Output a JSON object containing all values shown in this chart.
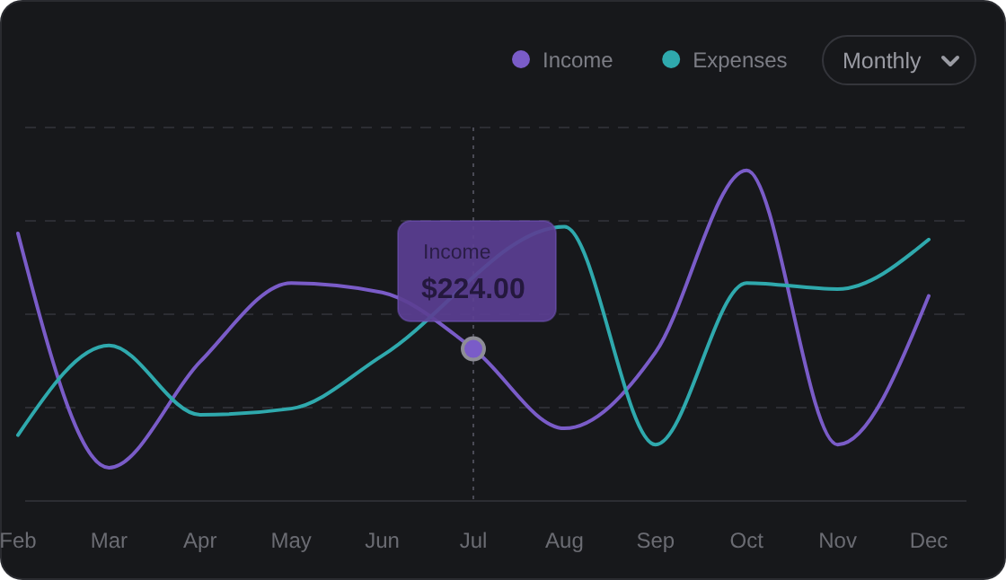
{
  "chart_data": {
    "type": "line",
    "ylim": [
      0,
      550
    ],
    "tick_labels": "x",
    "categories": [
      "Feb",
      "Mar",
      "Apr",
      "May",
      "Jun",
      "Jul",
      "Aug",
      "Sep",
      "Oct",
      "Nov",
      "Dec"
    ],
    "series": [
      {
        "name": "Income",
        "color": "#7a5cc8",
        "values": [
          394,
          49,
          205,
          321,
          307,
          224,
          107,
          219,
          487,
          83,
          302
        ],
        "value_labels": [
          null,
          null,
          null,
          null,
          null,
          "$224.00",
          null,
          null,
          null,
          null,
          null
        ]
      },
      {
        "name": "Expenses",
        "color": "#2fa9ad",
        "values": [
          97,
          229,
          127,
          136,
          214,
          null,
          404,
          83,
          321,
          312,
          385
        ]
      }
    ],
    "grid": true,
    "legend": "top right",
    "line_style": "solid",
    "ref_lines": [
      {
        "axis": "x",
        "value": "Jul",
        "line_style": "dotted",
        "color": "#4a4a55"
      }
    ],
    "annotations": [
      "Monthly"
    ]
  }
}
